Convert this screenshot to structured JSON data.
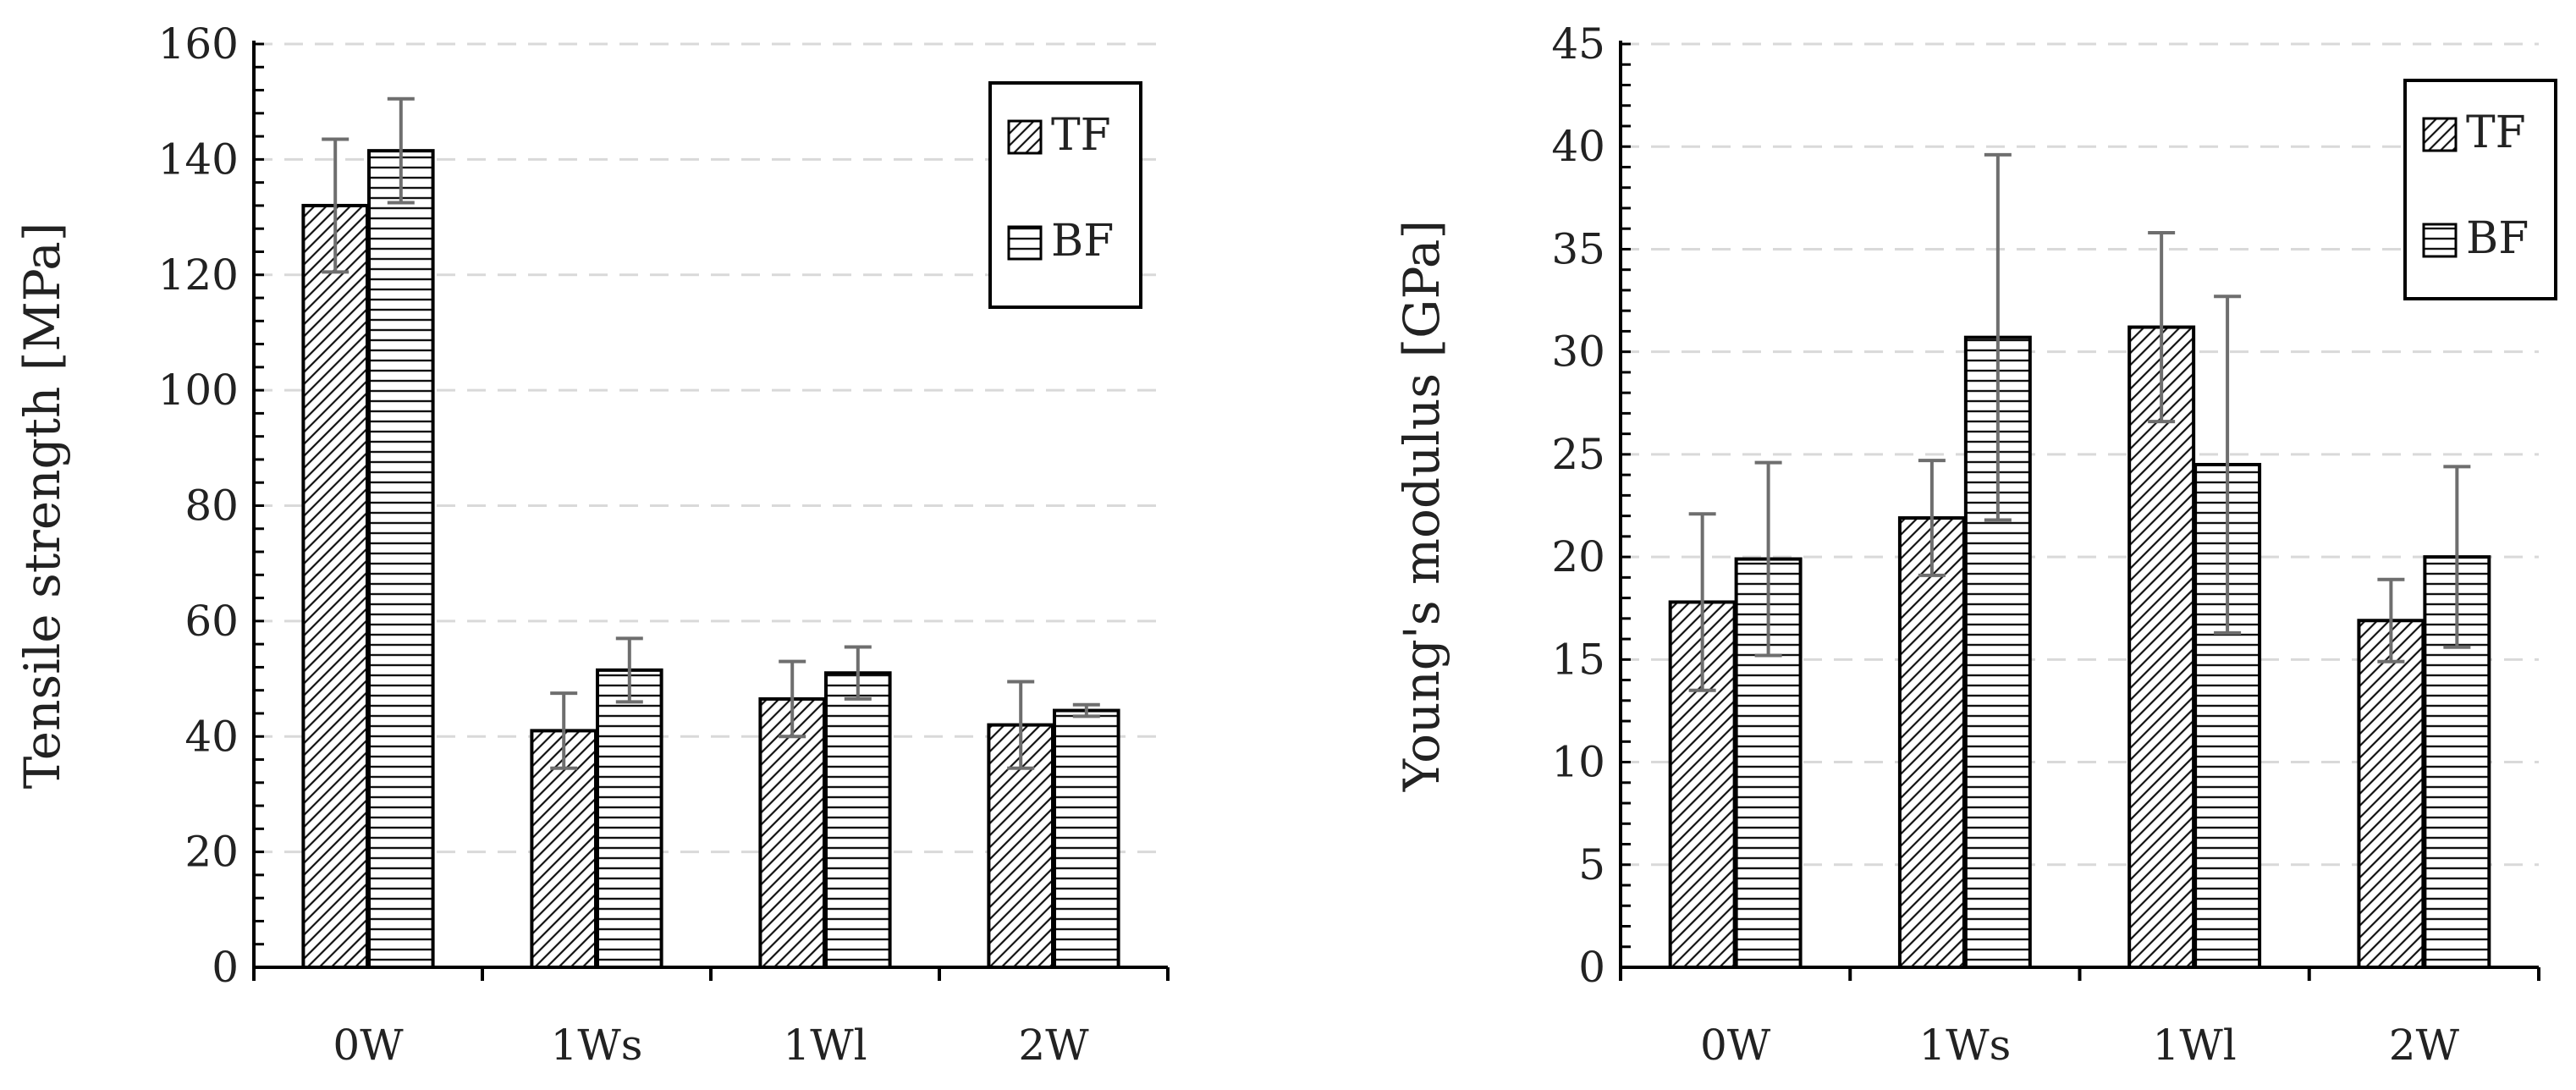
{
  "chart_data": [
    {
      "type": "bar",
      "title": "",
      "xlabel": "",
      "ylabel": "Tensile strength [MPa]",
      "ylim": [
        0,
        160
      ],
      "yticks": [
        0,
        20,
        40,
        60,
        80,
        100,
        120,
        140,
        160
      ],
      "grid": true,
      "legend_position": "top-right",
      "categories": [
        "0W",
        "1Ws",
        "1Wl",
        "2W"
      ],
      "series": [
        {
          "name": "TF",
          "pattern": "diagonal",
          "values": [
            132,
            41,
            46.5,
            42
          ],
          "errors": [
            11.5,
            6.5,
            6.5,
            7.5
          ]
        },
        {
          "name": "BF",
          "pattern": "horizontal",
          "values": [
            141.5,
            51.5,
            51,
            44.5
          ],
          "errors": [
            9,
            5.5,
            4.5,
            1
          ]
        }
      ]
    },
    {
      "type": "bar",
      "title": "",
      "xlabel": "",
      "ylabel": "Young's modulus [GPa]",
      "ylim": [
        0,
        45
      ],
      "yticks": [
        0,
        5,
        10,
        15,
        20,
        25,
        30,
        35,
        40,
        45
      ],
      "grid": true,
      "legend_position": "top-right",
      "categories": [
        "0W",
        "1Ws",
        "1Wl",
        "2W"
      ],
      "series": [
        {
          "name": "TF",
          "pattern": "diagonal",
          "values": [
            17.8,
            21.9,
            31.2,
            16.9
          ],
          "errors": [
            4.3,
            2.8,
            4.6,
            2.0
          ]
        },
        {
          "name": "BF",
          "pattern": "horizontal",
          "values": [
            19.9,
            30.7,
            24.5,
            20.0
          ],
          "errors": [
            4.7,
            8.9,
            8.2,
            4.4
          ]
        }
      ]
    }
  ],
  "colors": {
    "axis": "#000000",
    "grid": "#d9d9d9",
    "error_bar": "#6e6e6e",
    "text": "#222222"
  }
}
